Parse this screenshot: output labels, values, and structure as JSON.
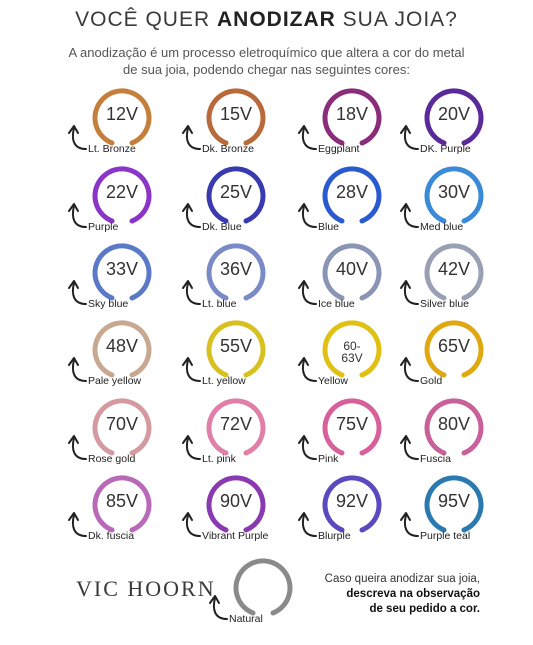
{
  "header": {
    "title_pre": "VOCÊ QUER ",
    "title_bold": "ANODIZAR",
    "title_post": " SUA JOIA?",
    "subtitle": "A anodização é um processo eletroquímico que altera a cor do metal de sua joia, podendo chegar nas seguintes cores:"
  },
  "colors": [
    {
      "volt": "12V",
      "name": "Lt. Bronze",
      "ring": "#c4803a"
    },
    {
      "volt": "15V",
      "name": "Dk. Bronze",
      "ring": "#b86a3a"
    },
    {
      "volt": "18V",
      "name": "Eggplant",
      "ring": "#8a2c7a"
    },
    {
      "volt": "20V",
      "name": "DK. Purple",
      "ring": "#5a2a9a"
    },
    {
      "volt": "22V",
      "name": "Purple",
      "ring": "#8a34c8"
    },
    {
      "volt": "25V",
      "name": "Dk. Blue",
      "ring": "#3a3ab0"
    },
    {
      "volt": "28V",
      "name": "Blue",
      "ring": "#2a5ad0"
    },
    {
      "volt": "30V",
      "name": "Med blue",
      "ring": "#3a8ad8"
    },
    {
      "volt": "33V",
      "name": "Sky blue",
      "ring": "#5a7ac8"
    },
    {
      "volt": "36V",
      "name": "Lt. blue",
      "ring": "#7a8ac8"
    },
    {
      "volt": "40V",
      "name": "Ice blue",
      "ring": "#8a94b4"
    },
    {
      "volt": "42V",
      "name": "Silver blue",
      "ring": "#9aa0b4"
    },
    {
      "volt": "48V",
      "name": "Pale yellow",
      "ring": "#c8a890"
    },
    {
      "volt": "55V",
      "name": "Lt. yellow",
      "ring": "#d8c020"
    },
    {
      "volt": "60-\n63V",
      "name": "Yellow",
      "ring": "#e0c010"
    },
    {
      "volt": "65V",
      "name": "Gold",
      "ring": "#e0a810"
    },
    {
      "volt": "70V",
      "name": "Rose gold",
      "ring": "#d49aa0"
    },
    {
      "volt": "72V",
      "name": "Lt. pink",
      "ring": "#e080a8"
    },
    {
      "volt": "75V",
      "name": "Pink",
      "ring": "#d8609a"
    },
    {
      "volt": "80V",
      "name": "Fuscia",
      "ring": "#c8609a"
    },
    {
      "volt": "85V",
      "name": "Dk. fuscia",
      "ring": "#b86ab8"
    },
    {
      "volt": "90V",
      "name": "Vibrant Purple",
      "ring": "#8a3ab0"
    },
    {
      "volt": "92V",
      "name": "Blurple",
      "ring": "#5a4ac0"
    },
    {
      "volt": "95V",
      "name": "Purple teal",
      "ring": "#2a7ab0"
    }
  ],
  "natural": {
    "name": "Natural",
    "ring": "#8a8a8a"
  },
  "brand": "VIC HOORN",
  "note": {
    "line1": "Caso queira anodizar sua joia,",
    "line2_bold": "descreva na observação",
    "line3_bold": "de seu pedido a cor."
  }
}
